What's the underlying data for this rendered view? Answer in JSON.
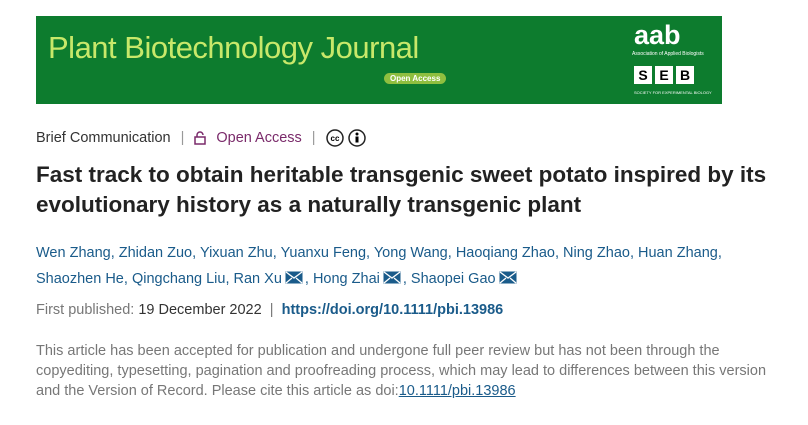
{
  "banner": {
    "journal": "Plant Biotechnology Journal",
    "badge": "Open Access",
    "society1": "aab",
    "society1_name": "Association of Applied Biologists",
    "society2": [
      "S",
      "E",
      "B"
    ],
    "society2_name": "SOCIETY FOR EXPERIMENTAL BIOLOGY"
  },
  "meta": {
    "article_type": "Brief Communication",
    "divider": "|",
    "access": "Open Access"
  },
  "title": "Fast track to obtain heritable transgenic sweet potato inspired by its evolutionary history as a naturally transgenic plant",
  "authors": {
    "separator": ",",
    "list": [
      {
        "name": "Wen Zhang",
        "email": false
      },
      {
        "name": "Zhidan Zuo",
        "email": false
      },
      {
        "name": "Yixuan Zhu",
        "email": false
      },
      {
        "name": "Yuanxu Feng",
        "email": false
      },
      {
        "name": "Yong Wang",
        "email": false
      },
      {
        "name": "Haoqiang Zhao",
        "email": false
      },
      {
        "name": "Ning Zhao",
        "email": false
      },
      {
        "name": "Huan Zhang",
        "email": false
      },
      {
        "name": "Shaozhen He",
        "email": false
      },
      {
        "name": "Qingchang Liu",
        "email": false
      },
      {
        "name": "Ran Xu",
        "email": true
      },
      {
        "name": "Hong Zhai",
        "email": true
      },
      {
        "name": "Shaopei Gao",
        "email": true
      }
    ]
  },
  "published": {
    "label": "First published:",
    "date": "19 December 2022",
    "divider": "|",
    "doi_link": "https://doi.org/10.1111/pbi.13986"
  },
  "notice": {
    "text": "This article has been accepted for publication and undergone full peer review but has not been through the copyediting, typesetting, pagination and proofreading process, which may lead to differences between this version and the Version of Record. Please cite this article as doi:",
    "doi": "10.1111/pbi.13986"
  }
}
